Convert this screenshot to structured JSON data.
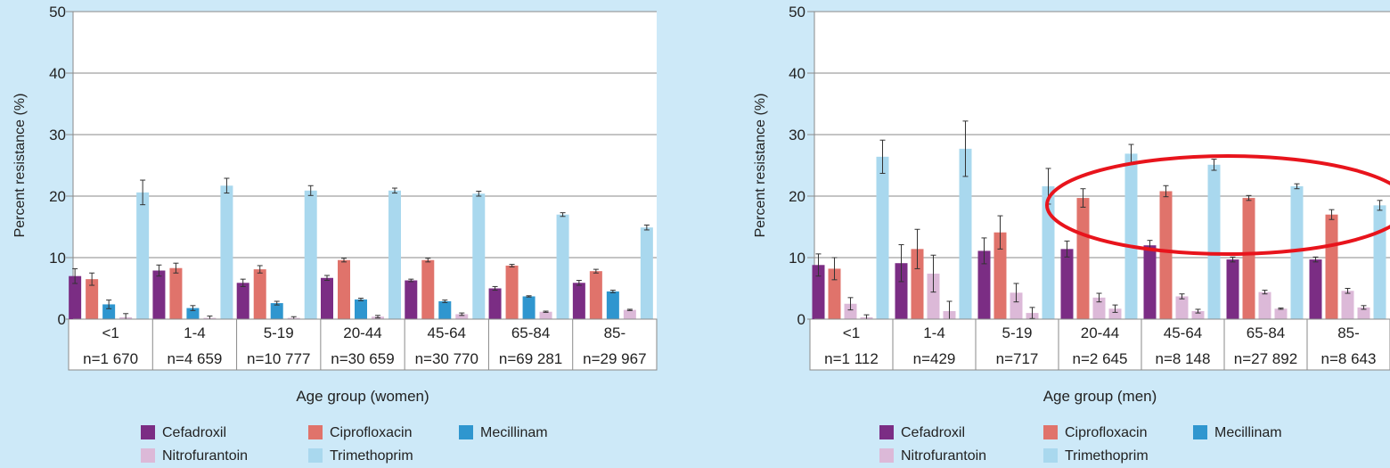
{
  "colors": {
    "background": "#cde9f8",
    "Cefadroxil": "#7b2d84",
    "Ciprofloxacin": "#e0736b",
    "Mecillinam": "#2f96cf",
    "Nitrofurantoin": "#dcb9d8",
    "Trimethoprim": "#a9d8ee",
    "highlight_ellipse": "#e8141c"
  },
  "legend": {
    "items": [
      "Cefadroxil",
      "Ciprofloxacin",
      "Mecillinam",
      "Nitrofurantoin",
      "Trimethoprim"
    ]
  },
  "chart_data": [
    {
      "type": "bar",
      "panel": "women",
      "ylabel": "Percent resistance (%)",
      "xlabel": "Age group (women)",
      "ylim": [
        0,
        50
      ],
      "yticks": [
        0,
        10,
        20,
        30,
        40,
        50
      ],
      "grid": true,
      "categories": [
        "<1",
        "1-4",
        "5-19",
        "20-44",
        "45-64",
        "65-84",
        "85-"
      ],
      "sample_sizes": [
        "n=1 670",
        "n=4 659",
        "n=10 777",
        "n=30 659",
        "n=30 770",
        "n=69 281",
        "n=29 967"
      ],
      "series": [
        {
          "name": "Cefadroxil",
          "values": [
            7.0,
            7.9,
            5.9,
            6.7,
            6.3,
            5.0,
            5.9
          ],
          "errors": [
            1.2,
            0.9,
            0.6,
            0.4,
            0.2,
            0.3,
            0.4
          ]
        },
        {
          "name": "Ciprofloxacin",
          "values": [
            6.5,
            8.3,
            8.1,
            9.6,
            9.6,
            8.7,
            7.8
          ],
          "errors": [
            1.0,
            0.8,
            0.6,
            0.3,
            0.3,
            0.2,
            0.3
          ]
        },
        {
          "name": "Mecillinam",
          "values": [
            2.4,
            1.8,
            2.6,
            3.2,
            2.9,
            3.7,
            4.5
          ],
          "errors": [
            0.7,
            0.4,
            0.3,
            0.2,
            0.2,
            0.1,
            0.2
          ]
        },
        {
          "name": "Nitrofurantoin",
          "values": [
            0.3,
            0.2,
            0.2,
            0.4,
            0.8,
            1.2,
            1.5
          ],
          "errors": [
            0.6,
            0.3,
            0.2,
            0.2,
            0.2,
            0.1,
            0.1
          ]
        },
        {
          "name": "Trimethoprim",
          "values": [
            20.6,
            21.7,
            20.9,
            20.9,
            20.4,
            17.0,
            14.9
          ],
          "errors": [
            2.0,
            1.2,
            0.8,
            0.4,
            0.4,
            0.3,
            0.4
          ]
        }
      ]
    },
    {
      "type": "bar",
      "panel": "men",
      "ylabel": "Percent resistance (%)",
      "xlabel": "Age group (men)",
      "ylim": [
        0,
        50
      ],
      "yticks": [
        0,
        10,
        20,
        30,
        40,
        50
      ],
      "grid": true,
      "categories": [
        "<1",
        "1-4",
        "5-19",
        "20-44",
        "45-64",
        "65-84",
        "85-"
      ],
      "sample_sizes": [
        "n=1 112",
        "n=429",
        "n=717",
        "n=2 645",
        "n=8 148",
        "n=27 892",
        "n=8 643"
      ],
      "highlight": {
        "shape": "ellipse",
        "covers_categories": [
          "20-44",
          "45-64",
          "65-84",
          "85-"
        ]
      },
      "series": [
        {
          "name": "Cefadroxil",
          "values": [
            8.8,
            9.1,
            11.1,
            11.4,
            12.0,
            9.7,
            9.7
          ],
          "errors": [
            1.8,
            3.0,
            2.1,
            1.3,
            0.8,
            0.4,
            0.4
          ]
        },
        {
          "name": "Ciprofloxacin",
          "values": [
            8.2,
            11.4,
            14.1,
            19.7,
            20.8,
            19.7,
            17.0
          ],
          "errors": [
            1.8,
            3.2,
            2.7,
            1.5,
            0.9,
            0.4,
            0.8
          ]
        },
        {
          "name": "Mecillinam",
          "values": [
            null,
            null,
            null,
            null,
            null,
            null,
            null
          ],
          "errors": [
            0,
            0,
            0,
            0,
            0,
            0,
            0
          ]
        },
        {
          "name": "Nitrofurantoin",
          "values": [
            2.5,
            7.4,
            4.3,
            3.5,
            3.7,
            4.4,
            4.6
          ],
          "errors": [
            1.0,
            3.0,
            1.5,
            0.7,
            0.4,
            0.3,
            0.4
          ]
        },
        {
          "name": "Trimethoprim",
          "values": [
            0.3,
            1.3,
            1.0,
            1.7,
            1.3,
            1.7,
            1.9
          ],
          "errors": [
            0.4,
            1.6,
            0.9,
            0.6,
            0.3,
            0.1,
            0.3
          ]
        },
        {
          "name": "Trimethoprim_main",
          "values": [
            26.4,
            27.7,
            21.6,
            26.9,
            25.1,
            21.6,
            18.5
          ],
          "errors": [
            2.7,
            4.5,
            2.9,
            1.5,
            0.9,
            0.4,
            0.8
          ]
        }
      ]
    }
  ]
}
